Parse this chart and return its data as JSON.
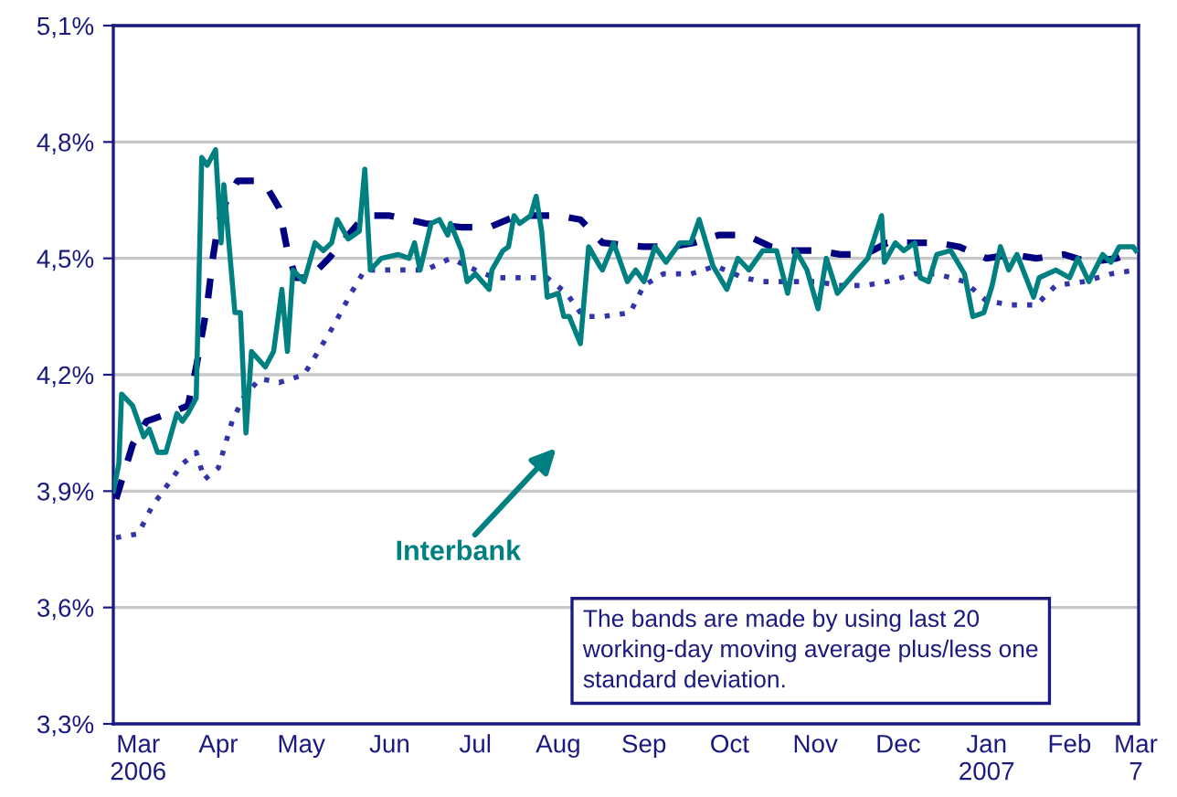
{
  "chart_data": {
    "type": "line",
    "series": [
      {
        "name": "Interbank",
        "color": "#008080",
        "line_style": "solid",
        "x": [
          "2006-03-01",
          "2006-03-03",
          "2006-03-04",
          "2006-03-08",
          "2006-03-12",
          "2006-03-14",
          "2006-03-17",
          "2006-03-20",
          "2006-03-24",
          "2006-03-26",
          "2006-03-28",
          "2006-03-31",
          "2006-04-02",
          "2006-04-04",
          "2006-04-07",
          "2006-04-09",
          "2006-04-10",
          "2006-04-14",
          "2006-04-16",
          "2006-04-18",
          "2006-04-20",
          "2006-04-25",
          "2006-04-28",
          "2006-05-01",
          "2006-05-03",
          "2006-05-05",
          "2006-05-09",
          "2006-05-13",
          "2006-05-16",
          "2006-05-19",
          "2006-05-21",
          "2006-05-25",
          "2006-05-29",
          "2006-05-31",
          "2006-06-02",
          "2006-06-06",
          "2006-06-12",
          "2006-06-16",
          "2006-06-18",
          "2006-06-20",
          "2006-06-24",
          "2006-06-27",
          "2006-06-30",
          "2006-07-01",
          "2006-07-05",
          "2006-07-07",
          "2006-07-10",
          "2006-07-15",
          "2006-07-16",
          "2006-07-20",
          "2006-07-22",
          "2006-07-24",
          "2006-07-26",
          "2006-07-30",
          "2006-08-01",
          "2006-08-03",
          "2006-08-05",
          "2006-08-09",
          "2006-08-11",
          "2006-08-13",
          "2006-08-17",
          "2006-08-20",
          "2006-08-24",
          "2006-08-25",
          "2006-08-29",
          "2006-09-03",
          "2006-09-06",
          "2006-09-09",
          "2006-09-13",
          "2006-09-17",
          "2006-09-22",
          "2006-09-26",
          "2006-09-29",
          "2006-10-04",
          "2006-10-09",
          "2006-10-13",
          "2006-10-17",
          "2006-10-22",
          "2006-10-27",
          "2006-10-31",
          "2006-11-03",
          "2006-11-07",
          "2006-11-11",
          "2006-11-14",
          "2006-11-18",
          "2006-11-24",
          "2006-11-29",
          "2006-12-04",
          "2006-12-05",
          "2006-12-09",
          "2006-12-12",
          "2006-12-16",
          "2006-12-18",
          "2006-12-21",
          "2006-12-24",
          "2006-12-29",
          "2007-01-03",
          "2007-01-06",
          "2007-01-10",
          "2007-01-13",
          "2007-01-16",
          "2007-01-19",
          "2007-01-22",
          "2007-01-28",
          "2007-01-30",
          "2007-02-05",
          "2007-02-10",
          "2007-02-13",
          "2007-02-17",
          "2007-02-22",
          "2007-02-25",
          "2007-02-28",
          "2007-03-05",
          "2007-03-06"
        ],
        "values": [
          3.9,
          3.97,
          4.15,
          4.12,
          4.04,
          4.06,
          4.0,
          4.0,
          4.1,
          4.08,
          4.1,
          4.14,
          4.76,
          4.74,
          4.78,
          4.54,
          4.69,
          4.36,
          4.36,
          4.05,
          4.26,
          4.22,
          4.26,
          4.42,
          4.26,
          4.47,
          4.44,
          4.54,
          4.52,
          4.54,
          4.6,
          4.55,
          4.57,
          4.73,
          4.47,
          4.5,
          4.51,
          4.5,
          4.54,
          4.47,
          4.59,
          4.6,
          4.56,
          4.59,
          4.52,
          4.44,
          4.46,
          4.42,
          4.47,
          4.52,
          4.53,
          4.61,
          4.59,
          4.61,
          4.66,
          4.57,
          4.4,
          4.41,
          4.35,
          4.35,
          4.28,
          4.53,
          4.48,
          4.47,
          4.54,
          4.44,
          4.47,
          4.44,
          4.53,
          4.49,
          4.54,
          4.54,
          4.6,
          4.48,
          4.42,
          4.5,
          4.47,
          4.52,
          4.52,
          4.41,
          4.52,
          4.47,
          4.37,
          4.5,
          4.41,
          4.46,
          4.5,
          4.61,
          4.49,
          4.54,
          4.52,
          4.54,
          4.45,
          4.44,
          4.51,
          4.52,
          4.46,
          4.35,
          4.36,
          4.43,
          4.53,
          4.47,
          4.51,
          4.4,
          4.45,
          4.47,
          4.45,
          4.5,
          4.44,
          4.51,
          4.49,
          4.53,
          4.53,
          4.52
        ]
      },
      {
        "color": "#000080",
        "line_style": "dashed",
        "x": [
          "2006-03-02",
          "2006-03-05",
          "2006-03-08",
          "2006-03-13",
          "2006-03-21",
          "2006-03-28",
          "2006-03-31",
          "2006-04-04",
          "2006-04-06",
          "2006-04-08",
          "2006-04-11",
          "2006-04-15",
          "2006-04-22",
          "2006-04-25",
          "2006-04-30",
          "2006-05-03",
          "2006-05-06",
          "2006-05-11",
          "2006-05-18",
          "2006-05-25",
          "2006-05-31",
          "2006-06-09",
          "2006-06-22",
          "2006-07-05",
          "2006-07-15",
          "2006-07-25",
          "2006-08-09",
          "2006-08-17",
          "2006-08-25",
          "2006-09-09",
          "2006-09-19",
          "2006-09-27",
          "2006-10-06",
          "2006-10-16",
          "2006-10-25",
          "2006-11-01",
          "2006-11-11",
          "2006-11-19",
          "2006-11-28",
          "2006-12-06",
          "2006-12-16",
          "2006-12-24",
          "2007-01-01",
          "2007-01-11",
          "2007-01-20",
          "2007-01-29",
          "2007-02-08",
          "2007-02-17",
          "2007-02-27",
          "2007-03-06"
        ],
        "values": [
          3.88,
          3.95,
          4.02,
          4.08,
          4.1,
          4.12,
          4.22,
          4.38,
          4.5,
          4.59,
          4.65,
          4.7,
          4.7,
          4.69,
          4.63,
          4.52,
          4.45,
          4.45,
          4.5,
          4.56,
          4.61,
          4.61,
          4.59,
          4.58,
          4.58,
          4.61,
          4.61,
          4.6,
          4.54,
          4.53,
          4.53,
          4.54,
          4.56,
          4.56,
          4.53,
          4.52,
          4.52,
          4.51,
          4.51,
          4.54,
          4.54,
          4.54,
          4.53,
          4.5,
          4.51,
          4.5,
          4.51,
          4.49,
          4.5,
          4.52
        ]
      },
      {
        "color": "#3333aa",
        "line_style": "dotted",
        "x": [
          "2006-03-02",
          "2006-03-10",
          "2006-03-15",
          "2006-03-22",
          "2006-03-26",
          "2006-03-31",
          "2006-04-03",
          "2006-04-08",
          "2006-04-13",
          "2006-04-17",
          "2006-04-23",
          "2006-04-30",
          "2006-05-09",
          "2006-05-15",
          "2006-05-20",
          "2006-05-26",
          "2006-05-31",
          "2006-06-12",
          "2006-06-22",
          "2006-07-01",
          "2006-07-10",
          "2006-07-17",
          "2006-07-28",
          "2006-08-05",
          "2006-08-12",
          "2006-08-18",
          "2006-08-25",
          "2006-09-04",
          "2006-09-09",
          "2006-09-16",
          "2006-09-26",
          "2006-10-05",
          "2006-10-15",
          "2006-10-22",
          "2006-11-01",
          "2006-11-11",
          "2006-11-18",
          "2006-11-28",
          "2006-12-06",
          "2006-12-16",
          "2006-12-24",
          "2007-01-03",
          "2007-01-11",
          "2007-01-20",
          "2007-01-29",
          "2007-02-05",
          "2007-02-15",
          "2007-02-25",
          "2007-03-06"
        ],
        "values": [
          3.78,
          3.79,
          3.86,
          3.93,
          3.97,
          4.0,
          3.93,
          3.96,
          4.08,
          4.14,
          4.19,
          4.18,
          4.2,
          4.27,
          4.33,
          4.41,
          4.47,
          4.47,
          4.47,
          4.5,
          4.47,
          4.45,
          4.45,
          4.45,
          4.41,
          4.35,
          4.35,
          4.36,
          4.43,
          4.46,
          4.46,
          4.48,
          4.45,
          4.44,
          4.44,
          4.44,
          4.43,
          4.43,
          4.44,
          4.46,
          4.46,
          4.44,
          4.39,
          4.38,
          4.38,
          4.43,
          4.44,
          4.46,
          4.47
        ]
      }
    ],
    "xlim": [
      "2006-03-01",
      "2007-03-07"
    ],
    "xticks": [
      {
        "value": "2006-03-10",
        "label": "Mar\n2006"
      },
      {
        "value": "2006-04-08",
        "label": "Apr"
      },
      {
        "value": "2006-05-08",
        "label": "May"
      },
      {
        "value": "2006-06-09",
        "label": "Jun"
      },
      {
        "value": "2006-07-10",
        "label": "Jul"
      },
      {
        "value": "2006-08-09",
        "label": "Aug"
      },
      {
        "value": "2006-09-09",
        "label": "Sep"
      },
      {
        "value": "2006-10-10",
        "label": "Oct"
      },
      {
        "value": "2006-11-10",
        "label": "Nov"
      },
      {
        "value": "2006-12-10",
        "label": "Dec"
      },
      {
        "value": "2007-01-11",
        "label": "Jan\n2007"
      },
      {
        "value": "2007-02-10",
        "label": "Feb"
      },
      {
        "value": "2007-03-06",
        "label": "Mar\n7"
      }
    ],
    "ylim": [
      3.3,
      5.1
    ],
    "yticks": [
      {
        "value": 3.3,
        "label": "3,3%"
      },
      {
        "value": 3.6,
        "label": "3,6%"
      },
      {
        "value": 3.9,
        "label": "3,9%"
      },
      {
        "value": 4.2,
        "label": "4,2%"
      },
      {
        "value": 4.5,
        "label": "4,5%"
      },
      {
        "value": 4.8,
        "label": "4,8%"
      },
      {
        "value": 5.1,
        "label": "5,1%"
      }
    ],
    "grid": "y",
    "legend": false,
    "annotations": [
      "The bands are made by using last 20 working-day moving average plus/less one standard deviation."
    ]
  }
}
